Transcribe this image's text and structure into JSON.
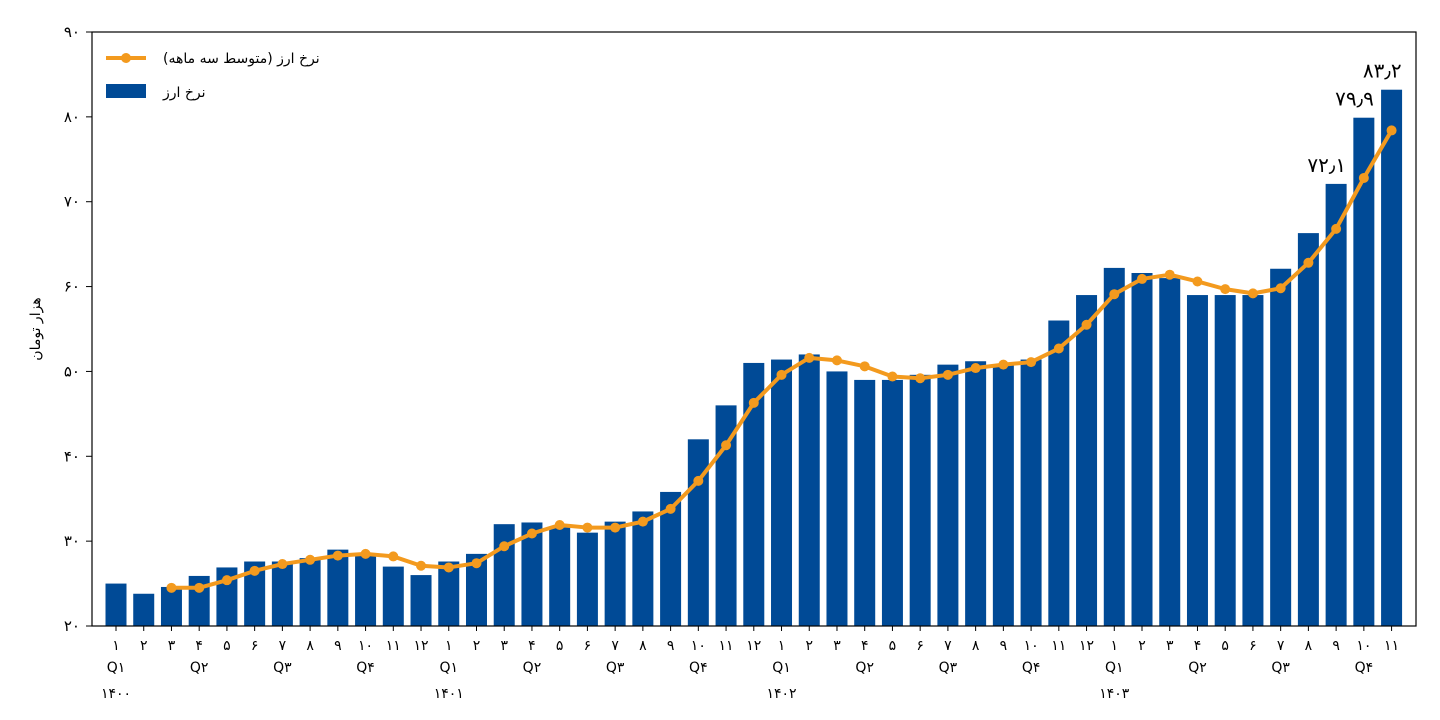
{
  "chart_data": {
    "type": "bar",
    "ylabel": "هزار تومان",
    "ylim": [
      20,
      90
    ],
    "yticks": [
      20,
      30,
      40,
      50,
      60,
      70,
      80,
      90
    ],
    "ytick_labels": [
      "۲۰",
      "۳۰",
      "۴۰",
      "۵۰",
      "۶۰",
      "۷۰",
      "۸۰",
      "۹۰"
    ],
    "month_labels": [
      "۱",
      "۲",
      "۳",
      "۴",
      "۵",
      "۶",
      "۷",
      "۸",
      "۹",
      "۱۰",
      "۱۱",
      "۱۲",
      "۱",
      "۲",
      "۳",
      "۴",
      "۵",
      "۶",
      "۷",
      "۸",
      "۹",
      "۱۰",
      "۱۱",
      "۱۲",
      "۱",
      "۲",
      "۳",
      "۴",
      "۵",
      "۶",
      "۷",
      "۸",
      "۹",
      "۱۰",
      "۱۱",
      "۱۲",
      "۱",
      "۲",
      "۳",
      "۴",
      "۵",
      "۶",
      "۷",
      "۸",
      "۹",
      "۱۰",
      "۱۱"
    ],
    "quarter_labels": [
      {
        "label": "Q۱",
        "index": 0
      },
      {
        "label": "Q۲",
        "index": 3
      },
      {
        "label": "Q۳",
        "index": 6
      },
      {
        "label": "Q۴",
        "index": 9
      },
      {
        "label": "Q۱",
        "index": 12
      },
      {
        "label": "Q۲",
        "index": 15
      },
      {
        "label": "Q۳",
        "index": 18
      },
      {
        "label": "Q۴",
        "index": 21
      },
      {
        "label": "Q۱",
        "index": 24
      },
      {
        "label": "Q۲",
        "index": 27
      },
      {
        "label": "Q۳",
        "index": 30
      },
      {
        "label": "Q۴",
        "index": 33
      },
      {
        "label": "Q۱",
        "index": 36
      },
      {
        "label": "Q۲",
        "index": 39
      },
      {
        "label": "Q۳",
        "index": 42
      },
      {
        "label": "Q۴",
        "index": 45
      }
    ],
    "year_labels": [
      {
        "label": "۱۴۰۰",
        "index": 0
      },
      {
        "label": "۱۴۰۱",
        "index": 12
      },
      {
        "label": "۱۴۰۲",
        "index": 24
      },
      {
        "label": "۱۴۰۳",
        "index": 36
      }
    ],
    "series": [
      {
        "name": "نرخ ارز",
        "kind": "bar",
        "color": "#004a96",
        "values": [
          25.0,
          23.8,
          24.6,
          25.9,
          26.9,
          27.6,
          27.6,
          28.0,
          29.0,
          28.4,
          27.0,
          26.0,
          27.6,
          28.5,
          32.0,
          32.2,
          31.6,
          31.0,
          32.3,
          33.5,
          35.8,
          42.0,
          46.0,
          51.0,
          51.4,
          52.0,
          50.0,
          49.0,
          49.0,
          49.6,
          50.8,
          51.2,
          50.7,
          51.4,
          56.0,
          59.0,
          62.2,
          61.6,
          61.0,
          59.0,
          59.0,
          59.0,
          62.1,
          66.3,
          72.1,
          79.9,
          83.2
        ]
      },
      {
        "name": "نرخ ارز (متوسط سه ماهه)",
        "kind": "line",
        "color": "#f39a1e",
        "values": [
          null,
          null,
          24.5,
          24.5,
          25.4,
          26.5,
          27.3,
          27.8,
          28.3,
          28.5,
          28.2,
          27.1,
          26.9,
          27.4,
          29.4,
          30.9,
          31.9,
          31.6,
          31.6,
          32.3,
          33.8,
          37.1,
          41.3,
          46.3,
          49.6,
          51.6,
          51.3,
          50.6,
          49.4,
          49.2,
          49.6,
          50.4,
          50.8,
          51.1,
          52.7,
          55.5,
          59.1,
          60.9,
          61.4,
          60.6,
          59.7,
          59.2,
          59.8,
          62.8,
          66.8,
          72.8,
          78.4
        ]
      }
    ],
    "data_labels": [
      {
        "index": 44,
        "text": "۷۲٫۱"
      },
      {
        "index": 45,
        "text": "۷۹٫۹"
      },
      {
        "index": 46,
        "text": "۸۳٫۲"
      }
    ],
    "legend": {
      "placement": "top-left"
    },
    "grid": false
  }
}
